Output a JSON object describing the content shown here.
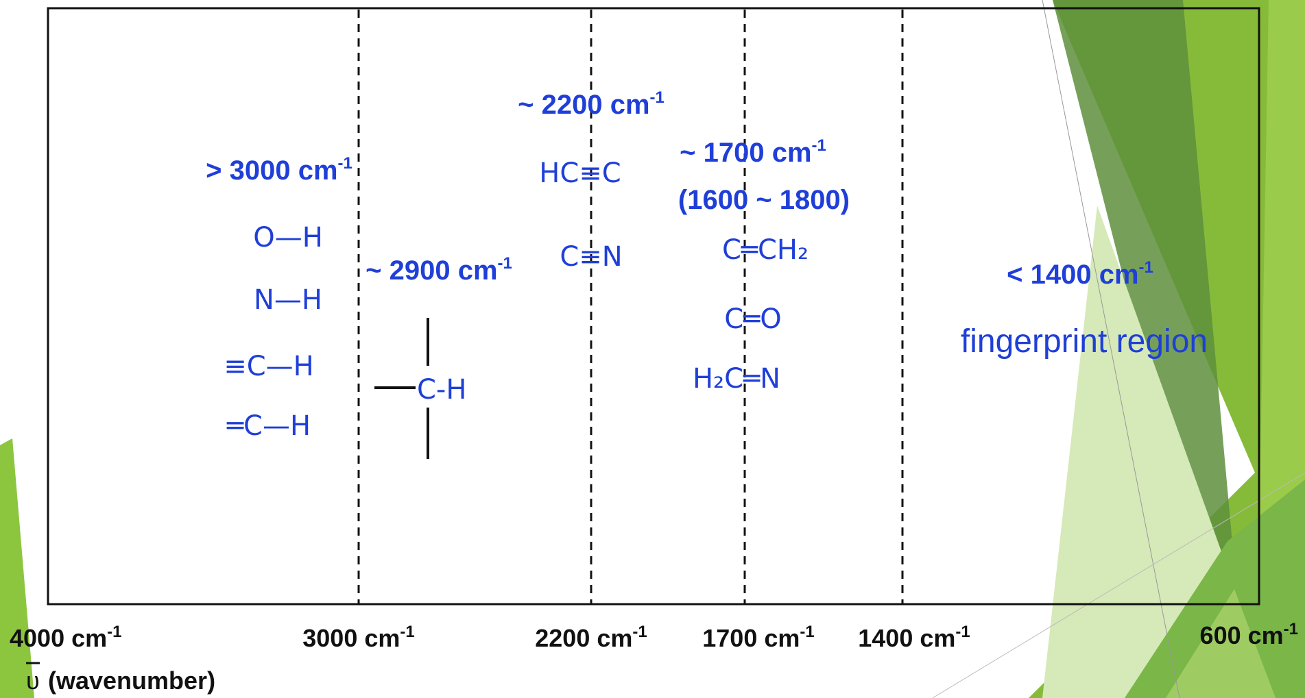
{
  "regions": [
    {
      "text": "> 3000 cm",
      "sup": "-1"
    },
    {
      "text": "~ 2900 cm",
      "sup": "-1"
    },
    {
      "text": "~ 2200 cm",
      "sup": "-1"
    },
    {
      "text": "~ 1700 cm",
      "sup": "-1",
      "range": "(1600 ~ 1800)"
    },
    {
      "text": "< 1400 cm",
      "sup": "-1",
      "caption": "fingerprint region"
    }
  ],
  "groups": {
    "above_3000": [
      "O—H",
      "N—H",
      "≡C—H",
      "═C—H"
    ],
    "near_2900": [
      "C-H"
    ],
    "near_2200": [
      "HC≡C",
      "C≡N"
    ],
    "near_1700": [
      "C═CH₂",
      "C═O",
      "H₂C═N"
    ]
  },
  "axis": {
    "ticks": [
      {
        "text": "4000 cm",
        "sup": "-1"
      },
      {
        "text": "3000 cm",
        "sup": "-1"
      },
      {
        "text": "2200 cm",
        "sup": "-1"
      },
      {
        "text": "1700 cm",
        "sup": "-1"
      },
      {
        "text": "1400 cm",
        "sup": "-1"
      },
      {
        "text": "600 cm",
        "sup": "-1"
      }
    ],
    "symbol": "υ",
    "label": "(wavenumber)"
  }
}
